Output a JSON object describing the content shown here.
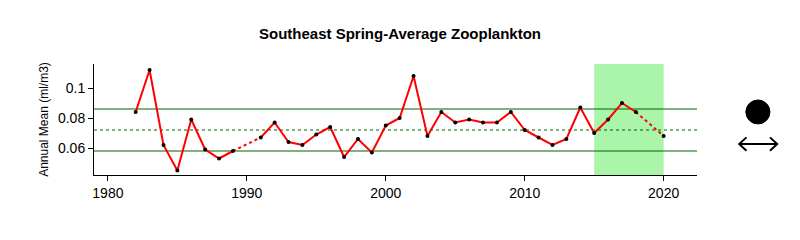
{
  "chart_data": {
    "type": "line",
    "title": "Southeast Spring-Average Zooplankton",
    "y_label": "Annual Mean (ml/m3)",
    "x": [
      1982,
      1983,
      1984,
      1985,
      1986,
      1987,
      1988,
      1989,
      1990,
      1991,
      1992,
      1993,
      1994,
      1995,
      1996,
      1997,
      1998,
      1999,
      2000,
      2001,
      2002,
      2003,
      2004,
      2005,
      2006,
      2007,
      2008,
      2009,
      2010,
      2011,
      2012,
      2013,
      2014,
      2015,
      2016,
      2017,
      2018,
      2019,
      2020
    ],
    "values": [
      0.084,
      0.112,
      0.062,
      0.045,
      0.079,
      0.059,
      0.053,
      0.058,
      null,
      0.067,
      0.077,
      0.064,
      0.062,
      0.069,
      0.074,
      0.054,
      0.066,
      0.057,
      0.075,
      0.08,
      0.108,
      0.068,
      0.084,
      0.077,
      0.079,
      0.077,
      0.077,
      0.084,
      0.072,
      0.067,
      0.062,
      0.066,
      0.087,
      0.07,
      0.079,
      0.09,
      0.084,
      null,
      0.068
    ],
    "color": "#ff0000",
    "marker": "point",
    "reference_lines": [
      {
        "value": 0.086,
        "line_style": "solid",
        "color": "#006400"
      },
      {
        "value": 0.072,
        "line_style": "dotted",
        "color": "#006400"
      },
      {
        "value": 0.058,
        "line_style": "solid",
        "color": "#006400"
      }
    ],
    "highlight_x": [
      2015,
      2020
    ],
    "highlight_color": "#aaf5aa",
    "xlim": [
      1979,
      2022.4
    ],
    "ylim": [
      0.042,
      0.116
    ],
    "xticks": [
      1980,
      1990,
      2000,
      2010,
      2020
    ],
    "yticks": [
      0.06,
      0.08,
      0.1
    ],
    "grid": false
  }
}
